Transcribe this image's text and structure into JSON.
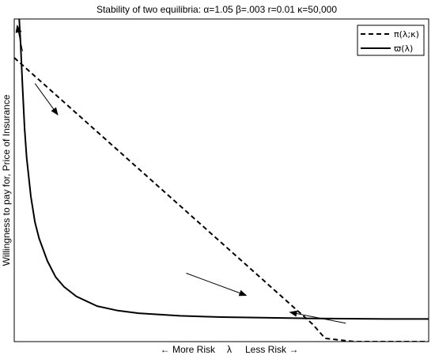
{
  "chart_data": {
    "type": "line",
    "title": "Stability of two equilibria:  α=1.05 β=.003 r=0.01 κ=50,000",
    "ylabel": "Willingness to pay for, Price of Insurance",
    "xlabel_left": "← More Risk",
    "xlabel_symbol": "λ",
    "xlabel_right": "Less Risk →",
    "xlim": [
      0,
      1
    ],
    "ylim": [
      0,
      1
    ],
    "grid": false,
    "axis_ticks": false,
    "legend_position": "top-right",
    "series": [
      {
        "name": "π(λ;κ)",
        "style": "dashed",
        "color": "#000000",
        "x": [
          0.0,
          0.72,
          0.75,
          0.82,
          1.0
        ],
        "y": [
          0.88,
          0.054,
          0.01,
          0.0,
          0.0
        ]
      },
      {
        "name": "ϖ(λ)",
        "style": "solid",
        "color": "#000000",
        "x": [
          0.012,
          0.015,
          0.02,
          0.025,
          0.03,
          0.04,
          0.05,
          0.06,
          0.08,
          0.1,
          0.12,
          0.15,
          0.2,
          0.25,
          0.3,
          0.4,
          0.5,
          0.6,
          0.7,
          0.8,
          0.9,
          1.0
        ],
        "y": [
          1.0,
          0.93,
          0.79,
          0.66,
          0.57,
          0.45,
          0.37,
          0.32,
          0.25,
          0.2,
          0.17,
          0.14,
          0.11,
          0.096,
          0.088,
          0.08,
          0.076,
          0.074,
          0.072,
          0.071,
          0.07,
          0.07
        ]
      }
    ],
    "arrows": [
      {
        "from": [
          0.02,
          0.9
        ],
        "to": [
          0.007,
          0.98
        ]
      },
      {
        "from": [
          0.05,
          0.8
        ],
        "to": [
          0.105,
          0.703
        ]
      },
      {
        "from": [
          0.415,
          0.212
        ],
        "to": [
          0.56,
          0.143
        ]
      },
      {
        "from": [
          0.8,
          0.057
        ],
        "to": [
          0.665,
          0.091
        ]
      }
    ]
  }
}
